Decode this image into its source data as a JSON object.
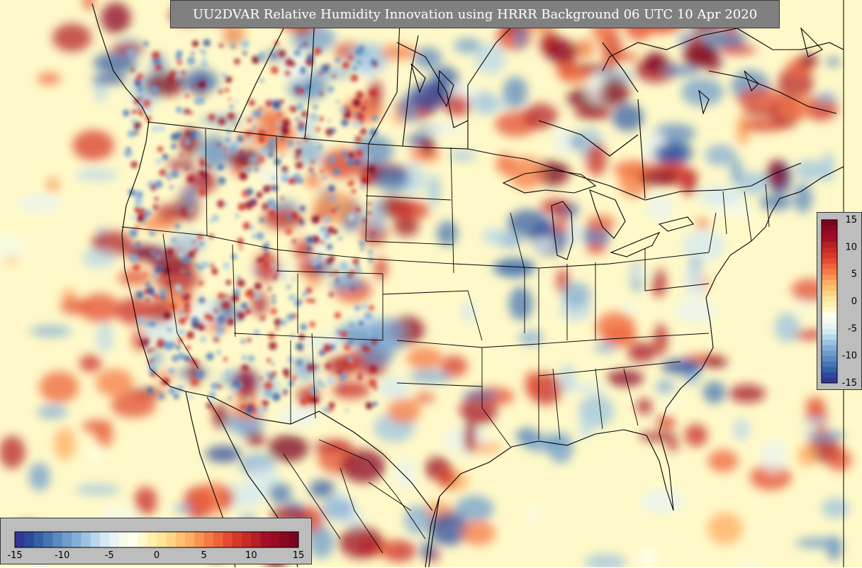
{
  "title": "UU2DVAR Relative Humidity Innovation using HRRR Background 06 UTC 10 Apr 2020",
  "colorbar": {
    "min": -15,
    "max": 15,
    "steps": 30,
    "colors": [
      "#313695",
      "#2b4a9c",
      "#3560a6",
      "#4575b4",
      "#5b8ac0",
      "#6f9ccb",
      "#84aed6",
      "#9cc3e0",
      "#b8d7ea",
      "#d3e8f1",
      "#e8f4f3",
      "#f6fbea",
      "#fffff0",
      "#fff8cf",
      "#ffefac",
      "#fee59a",
      "#fed585",
      "#fdc070",
      "#fdae61",
      "#f99353",
      "#f57a46",
      "#ef633b",
      "#e34c32",
      "#d6392a",
      "#c92a25",
      "#b51f26",
      "#a50f26",
      "#9b0b24",
      "#8a0721",
      "#7a041d"
    ],
    "horizontal_ticks": [
      "-15",
      "-10",
      "-5",
      "0",
      "5",
      "10",
      "15"
    ],
    "vertical_ticks": [
      "15",
      "10",
      "5",
      "0",
      "-5",
      "-10",
      "-15"
    ]
  },
  "colors": {
    "background": "#fff9c9",
    "title_bg": "#808080",
    "title_text": "#ffffff",
    "panel_bg": "#bdbdbd",
    "boundary": "#000000"
  }
}
